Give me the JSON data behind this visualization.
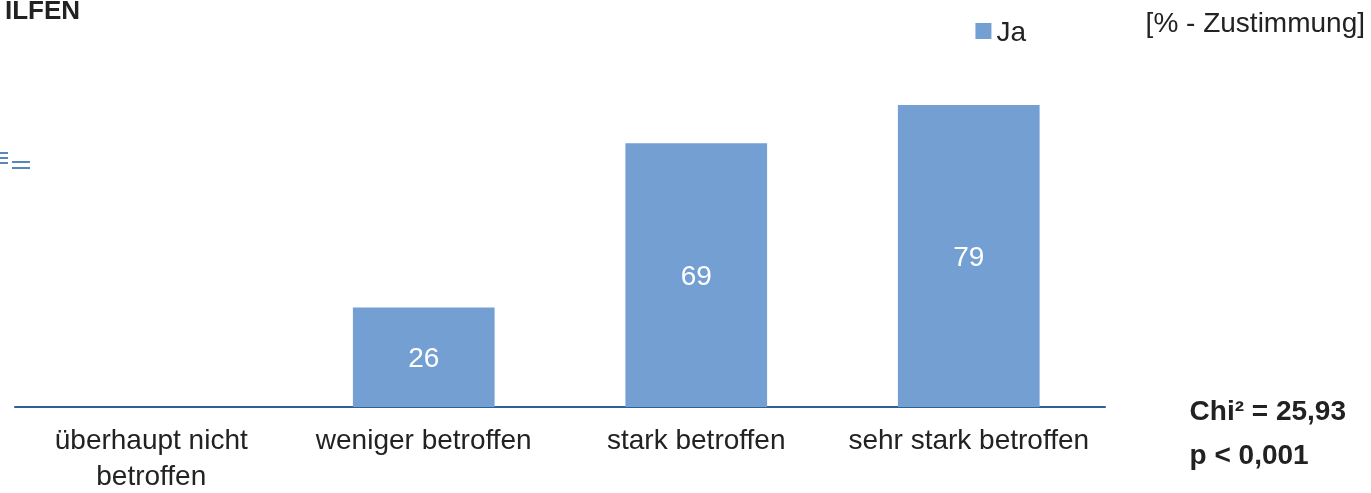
{
  "chart_data": {
    "type": "bar",
    "title": "ILFEN",
    "ylabel": "[% - Zustimmung]",
    "categories": [
      "überhaupt nicht\nbetroffen",
      "weniger betroffen",
      "stark betroffen",
      "sehr stark betroffen"
    ],
    "series": [
      {
        "name": "Ja",
        "color": "#739fd2",
        "values": [
          null,
          26,
          69,
          79
        ]
      }
    ],
    "tick_labels": "x",
    "data_labels": true,
    "legend": "top right",
    "grid": false,
    "annotations": [
      "Chi² = 25,93\np < 0,001"
    ]
  }
}
